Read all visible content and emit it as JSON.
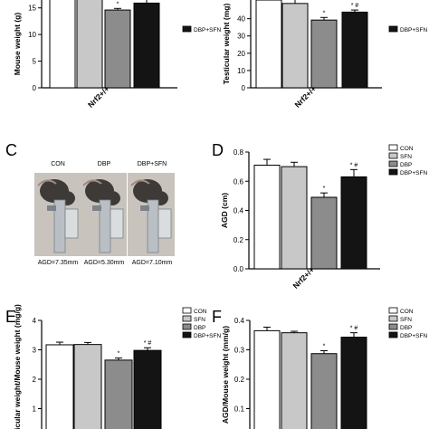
{
  "panel_letters": {
    "c": "C",
    "d": "D",
    "e": "E",
    "f": "F"
  },
  "photo_panel": {
    "labels": [
      "CON",
      "DBP",
      "DBP+SFN"
    ],
    "captions": [
      "AGD=7.35mm",
      "AGD=5.30mm",
      "AGD=7.10mm"
    ],
    "colors": {
      "background": "#c8c3bc",
      "mouse": "#3d3a38",
      "caliper": "#b9bfc4",
      "caliper_dark": "#7b8288"
    }
  },
  "series_colors": [
    "#ffffff",
    "#c8c8c8",
    "#8c8c8c",
    "#141414"
  ],
  "chart_data": [
    {
      "id": "A",
      "type": "bar",
      "ylabel": "Mouse weight (g)",
      "xlabel": "Nrf2+/+",
      "ylim": [
        0,
        17.5
      ],
      "yticks": [
        0,
        5,
        10,
        15
      ],
      "values": [
        17.1,
        16.9,
        14.6,
        15.9
      ],
      "errors": [
        0.4,
        0.6,
        0.3,
        0.7
      ],
      "marks": [
        "",
        "",
        "*",
        "* #"
      ],
      "legend": [
        "",
        "",
        "",
        "DBP+SFN"
      ]
    },
    {
      "id": "B",
      "type": "bar",
      "ylabel": "Testicular weight (mg)",
      "xlabel": "Nrf2+/+",
      "ylim": [
        0,
        55
      ],
      "yticks": [
        0,
        10,
        20,
        30,
        40,
        50
      ],
      "values": [
        50.8,
        48.8,
        39.2,
        43.8
      ],
      "errors": [
        1.8,
        3.5,
        1.5,
        1.2
      ],
      "marks": [
        "",
        "",
        "*",
        "* #"
      ],
      "legend": [
        "",
        "",
        "",
        "DBP+SFN"
      ]
    },
    {
      "id": "D",
      "type": "bar",
      "ylabel": "AGD (cm)",
      "xlabel": "Nrf2+/+",
      "ylim": [
        0,
        0.8
      ],
      "yticks": [
        0.0,
        0.2,
        0.4,
        0.6,
        0.8
      ],
      "values": [
        0.71,
        0.7,
        0.49,
        0.63
      ],
      "errors": [
        0.04,
        0.03,
        0.03,
        0.05
      ],
      "marks": [
        "",
        "",
        "*",
        "* #"
      ],
      "legend": [
        "CON",
        "SFN",
        "DBP",
        "DBP+SFN"
      ]
    },
    {
      "id": "E",
      "type": "bar",
      "ylabel": "Testicular weight/Mouse weight (mg/g)",
      "xlabel": "",
      "ylim": [
        0,
        4
      ],
      "yticks": [
        0,
        1,
        2,
        3,
        4
      ],
      "values": [
        3.17,
        3.18,
        2.65,
        2.98
      ],
      "errors": [
        0.09,
        0.07,
        0.07,
        0.09
      ],
      "marks": [
        "",
        "",
        "*",
        "* #"
      ],
      "legend": [
        "CON",
        "SFN",
        "DBP",
        "DBP+SFN"
      ]
    },
    {
      "id": "F",
      "type": "bar",
      "ylabel": "AGD/Mouse weight (mm/g)",
      "xlabel": "",
      "ylim": [
        0,
        0.4
      ],
      "yticks": [
        0.0,
        0.1,
        0.2,
        0.3,
        0.4
      ],
      "values": [
        0.365,
        0.358,
        0.287,
        0.343
      ],
      "errors": [
        0.012,
        0.005,
        0.01,
        0.015
      ],
      "marks": [
        "",
        "",
        "*",
        "* #"
      ],
      "legend": [
        "CON",
        "SFN",
        "DBP",
        "DBP+SFN"
      ]
    }
  ]
}
